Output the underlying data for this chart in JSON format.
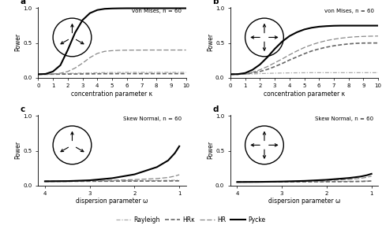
{
  "title_a": "von Mises, n = 60",
  "title_b": "von Mises, n = 60",
  "title_c": "Skew Normal, n = 60",
  "title_d": "Skew Normal, n = 60",
  "xlabel_ab": "concentration parameter κ",
  "xlabel_cd": "dispersion parameter ω",
  "ylabel": "Power",
  "panel_labels": [
    "a",
    "b",
    "c",
    "d"
  ],
  "kappa": [
    0,
    0.5,
    1,
    1.5,
    2,
    2.5,
    3,
    3.5,
    4,
    4.5,
    5,
    5.5,
    6,
    6.5,
    7,
    7.5,
    8,
    8.5,
    9,
    9.5,
    10
  ],
  "omega": [
    4.0,
    3.5,
    3.0,
    2.5,
    2.0,
    1.5,
    1.25,
    1.1,
    1.0
  ],
  "panel_a": {
    "Rayleigh": [
      0.05,
      0.05,
      0.055,
      0.058,
      0.062,
      0.065,
      0.068,
      0.07,
      0.072,
      0.074,
      0.075,
      0.076,
      0.077,
      0.077,
      0.077,
      0.077,
      0.077,
      0.077,
      0.077,
      0.077,
      0.077
    ],
    "HRx": [
      0.05,
      0.05,
      0.051,
      0.052,
      0.053,
      0.054,
      0.055,
      0.056,
      0.057,
      0.058,
      0.058,
      0.059,
      0.059,
      0.059,
      0.059,
      0.059,
      0.059,
      0.059,
      0.059,
      0.059,
      0.059
    ],
    "HR": [
      0.05,
      0.05,
      0.055,
      0.065,
      0.09,
      0.14,
      0.21,
      0.29,
      0.35,
      0.38,
      0.39,
      0.395,
      0.397,
      0.398,
      0.398,
      0.399,
      0.399,
      0.399,
      0.399,
      0.399,
      0.399
    ],
    "Pycke": [
      0.05,
      0.055,
      0.09,
      0.18,
      0.4,
      0.65,
      0.83,
      0.93,
      0.975,
      0.992,
      0.997,
      0.999,
      1.0,
      1.0,
      1.0,
      1.0,
      1.0,
      1.0,
      1.0,
      1.0,
      1.0
    ]
  },
  "panel_b": {
    "Rayleigh": [
      0.05,
      0.05,
      0.052,
      0.055,
      0.06,
      0.063,
      0.066,
      0.068,
      0.07,
      0.071,
      0.072,
      0.073,
      0.073,
      0.073,
      0.073,
      0.073,
      0.073,
      0.073,
      0.073,
      0.073,
      0.073
    ],
    "HRx": [
      0.05,
      0.05,
      0.055,
      0.07,
      0.09,
      0.12,
      0.16,
      0.205,
      0.255,
      0.3,
      0.345,
      0.385,
      0.415,
      0.44,
      0.46,
      0.475,
      0.487,
      0.495,
      0.499,
      0.5,
      0.5
    ],
    "HR": [
      0.05,
      0.05,
      0.058,
      0.08,
      0.115,
      0.16,
      0.215,
      0.27,
      0.33,
      0.385,
      0.435,
      0.475,
      0.508,
      0.535,
      0.555,
      0.57,
      0.582,
      0.59,
      0.595,
      0.598,
      0.6
    ],
    "Pycke": [
      0.05,
      0.052,
      0.068,
      0.115,
      0.19,
      0.295,
      0.415,
      0.52,
      0.6,
      0.655,
      0.695,
      0.72,
      0.735,
      0.743,
      0.748,
      0.75,
      0.75,
      0.75,
      0.75,
      0.75,
      0.75
    ]
  },
  "panel_c": {
    "Rayleigh": [
      0.06,
      0.062,
      0.065,
      0.068,
      0.07,
      0.072,
      0.074,
      0.076,
      0.078
    ],
    "HRx": [
      0.06,
      0.06,
      0.061,
      0.062,
      0.063,
      0.064,
      0.065,
      0.066,
      0.067
    ],
    "HR": [
      0.06,
      0.063,
      0.068,
      0.075,
      0.085,
      0.1,
      0.115,
      0.135,
      0.155
    ],
    "Pycke": [
      0.06,
      0.063,
      0.075,
      0.105,
      0.16,
      0.265,
      0.36,
      0.465,
      0.565
    ]
  },
  "panel_d": {
    "Rayleigh": [
      0.05,
      0.052,
      0.054,
      0.056,
      0.058,
      0.06,
      0.062,
      0.064,
      0.066
    ],
    "HRx": [
      0.05,
      0.051,
      0.052,
      0.053,
      0.054,
      0.056,
      0.058,
      0.061,
      0.065
    ],
    "HR": [
      0.05,
      0.052,
      0.056,
      0.062,
      0.072,
      0.088,
      0.103,
      0.118,
      0.135
    ],
    "Pycke": [
      0.05,
      0.052,
      0.057,
      0.066,
      0.082,
      0.108,
      0.128,
      0.148,
      0.168
    ]
  },
  "colors": {
    "Rayleigh": "#aaaaaa",
    "HRx": "#666666",
    "HR": "#888888",
    "Pycke": "#000000"
  },
  "linewidths": {
    "Rayleigh": 0.9,
    "HRx": 1.2,
    "HR": 0.9,
    "Pycke": 1.5
  },
  "ylim": [
    0.0,
    1.0
  ],
  "yticks": [
    0.0,
    0.5,
    1.0
  ],
  "ytick_labels": [
    "0.0",
    "0.5",
    "1.0"
  ]
}
